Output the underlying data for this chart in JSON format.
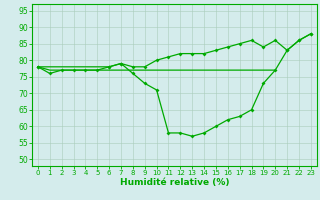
{
  "xlabel": "Humidité relative (%)",
  "bg_color": "#d4ecec",
  "grid_color": "#aaccbb",
  "line_color": "#00aa00",
  "xlim": [
    -0.5,
    23.5
  ],
  "ylim": [
    48,
    97
  ],
  "yticks": [
    50,
    55,
    60,
    65,
    70,
    75,
    80,
    85,
    90,
    95
  ],
  "xticks": [
    0,
    1,
    2,
    3,
    4,
    5,
    6,
    7,
    8,
    9,
    10,
    11,
    12,
    13,
    14,
    15,
    16,
    17,
    18,
    19,
    20,
    21,
    22,
    23
  ],
  "curve_lower": {
    "x": [
      0,
      1,
      2,
      3,
      4,
      5,
      6,
      7,
      8,
      9,
      10,
      11,
      12,
      13,
      14,
      15,
      16,
      17,
      18,
      19,
      20,
      21,
      22,
      23
    ],
    "y": [
      78,
      76,
      77,
      77,
      77,
      77,
      78,
      79,
      76,
      73,
      71,
      58,
      58,
      57,
      58,
      60,
      62,
      63,
      65,
      73,
      77,
      83,
      86,
      88
    ]
  },
  "curve_flat": {
    "x": [
      0,
      1,
      2,
      3,
      4,
      5,
      6,
      7,
      8,
      9,
      10,
      11,
      12,
      13,
      14,
      15,
      16,
      17,
      18,
      19,
      20
    ],
    "y": [
      78,
      77,
      77,
      77,
      77,
      77,
      77,
      77,
      77,
      77,
      77,
      77,
      77,
      77,
      77,
      77,
      77,
      77,
      77,
      77,
      77
    ]
  },
  "curve_upper": {
    "x": [
      0,
      6,
      7,
      8,
      9,
      10,
      11,
      12,
      13,
      14,
      15,
      16,
      17,
      18,
      19,
      20,
      21,
      22,
      23
    ],
    "y": [
      78,
      78,
      79,
      78,
      78,
      80,
      81,
      82,
      82,
      82,
      83,
      84,
      85,
      86,
      84,
      86,
      83,
      86,
      88
    ]
  }
}
